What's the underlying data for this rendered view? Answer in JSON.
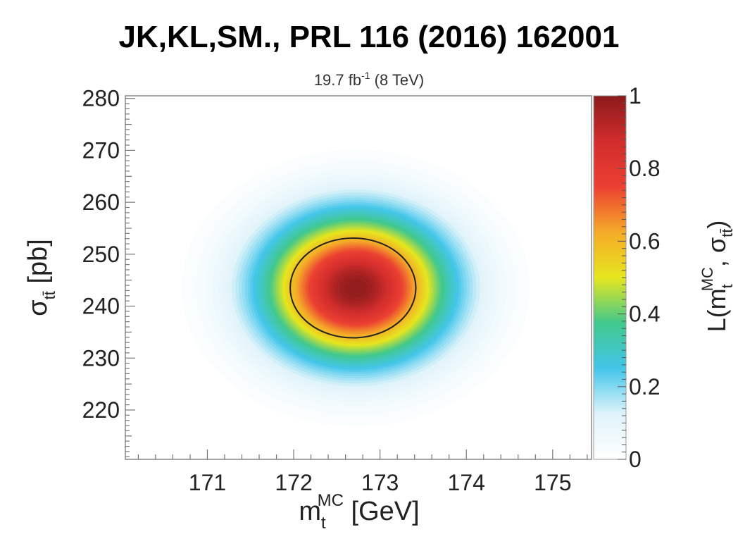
{
  "header": {
    "title": "JK,KL,SM., PRL 116 (2016) 162001"
  },
  "chart_data": {
    "type": "heatmap",
    "subtitle": {
      "prefix": "19.7 fb",
      "superscript": "-1",
      "suffix": " (8 TeV)"
    },
    "xlabel": {
      "main": "m",
      "sub": "t",
      "sup": "MC",
      "unit": " [GeV]"
    },
    "ylabel": {
      "main": "σ",
      "sub": "tt̄",
      "unit": " [pb]"
    },
    "zlabel": {
      "prefix": "L(m",
      "sub1": "t",
      "sup1": "MC",
      "mid": ", σ",
      "sub2": "tt̄",
      "suffix": ")"
    },
    "xlim": [
      170.05,
      175.45
    ],
    "ylim": [
      210.5,
      280.5
    ],
    "zlim": [
      0,
      1
    ],
    "xticks": [
      171,
      172,
      173,
      174,
      175
    ],
    "yticks": [
      220,
      230,
      240,
      250,
      260,
      270,
      280
    ],
    "zticks": [
      "0",
      "0.2",
      "0.4",
      "0.6",
      "0.8",
      "1"
    ],
    "peak": {
      "x": 172.72,
      "y": 243.5,
      "value": 1.0
    },
    "width": {
      "sigma_x": 0.72,
      "sigma_y": 9.5
    },
    "contour": {
      "level": 0.6,
      "description": "1σ contour"
    },
    "colormap": [
      "#ffffff",
      "#dff3fa",
      "#43c6ea",
      "#41c88c",
      "#e6e61e",
      "#f5aa28",
      "#eb4032",
      "#d22d2d",
      "#8b1a1a"
    ]
  }
}
